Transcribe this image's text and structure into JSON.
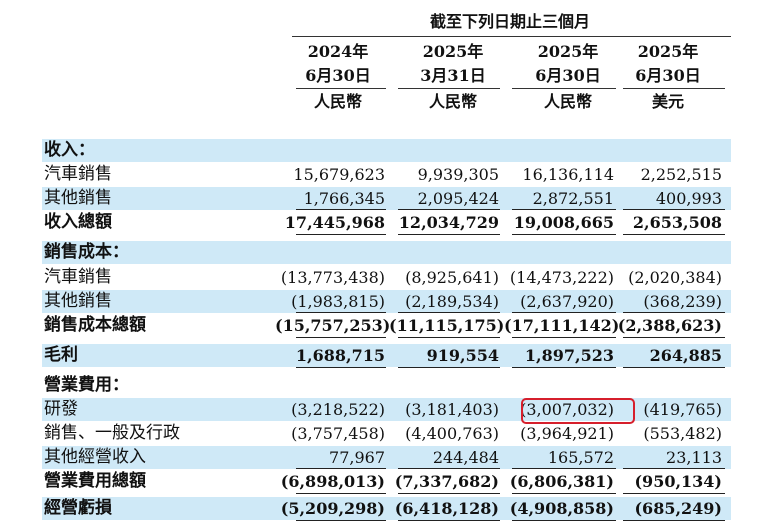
{
  "header": {
    "period_title": "截至下列日期止三個月",
    "columns": [
      {
        "year": "2024年",
        "date": "6月30日",
        "currency": "人民幣"
      },
      {
        "year": "2025年",
        "date": "3月31日",
        "currency": "人民幣"
      },
      {
        "year": "2025年",
        "date": "6月30日",
        "currency": "人民幣"
      },
      {
        "year": "2025年",
        "date": "6月30日",
        "currency": "美元"
      }
    ]
  },
  "rows": [
    {
      "label": "收入：",
      "values": [
        "",
        "",
        "",
        ""
      ]
    },
    {
      "label": "汽車銷售",
      "values": [
        "15,679,623",
        "9,939,305",
        "16,136,114",
        "2,252,515"
      ]
    },
    {
      "label": "其他銷售",
      "values": [
        "1,766,345",
        "2,095,424",
        "2,872,551",
        "400,993"
      ]
    },
    {
      "label": "收入總額",
      "values": [
        "17,445,968",
        "12,034,729",
        "19,008,665",
        "2,653,508"
      ]
    },
    {
      "label": "銷售成本：",
      "values": [
        "",
        "",
        "",
        ""
      ]
    },
    {
      "label": "汽車銷售",
      "values": [
        "(13,773,438)",
        "(8,925,641)",
        "(14,473,222)",
        "(2,020,384)"
      ]
    },
    {
      "label": "其他銷售",
      "values": [
        "(1,983,815)",
        "(2,189,534)",
        "(2,637,920)",
        "(368,239)"
      ]
    },
    {
      "label": "銷售成本總額",
      "values": [
        "(15,757,253)",
        "(11,115,175)",
        "(17,111,142)",
        "(2,388,623)"
      ]
    },
    {
      "label": "毛利",
      "values": [
        "1,688,715",
        "919,554",
        "1,897,523",
        "264,885"
      ]
    },
    {
      "label": "營業費用：",
      "values": [
        "",
        "",
        "",
        ""
      ]
    },
    {
      "label": "研發",
      "values": [
        "(3,218,522)",
        "(3,181,403)",
        "(3,007,032)",
        "(419,765)"
      ]
    },
    {
      "label": "銷售、一般及行政",
      "values": [
        "(3,757,458)",
        "(4,400,763)",
        "(3,964,921)",
        "(553,482)"
      ]
    },
    {
      "label": "其他經營收入",
      "values": [
        "77,967",
        "244,484",
        "165,572",
        "23,113"
      ]
    },
    {
      "label": "營業費用總額",
      "values": [
        "(6,898,013)",
        "(7,337,682)",
        "(6,806,381)",
        "(950,134)"
      ]
    },
    {
      "label": "經營虧損",
      "values": [
        "(5,209,298)",
        "(6,418,128)",
        "(4,908,858)",
        "(685,249)"
      ]
    }
  ],
  "highlight": {
    "row": "研發",
    "column": "2025年 6月30日 人民幣",
    "color": "#d61f2c"
  }
}
